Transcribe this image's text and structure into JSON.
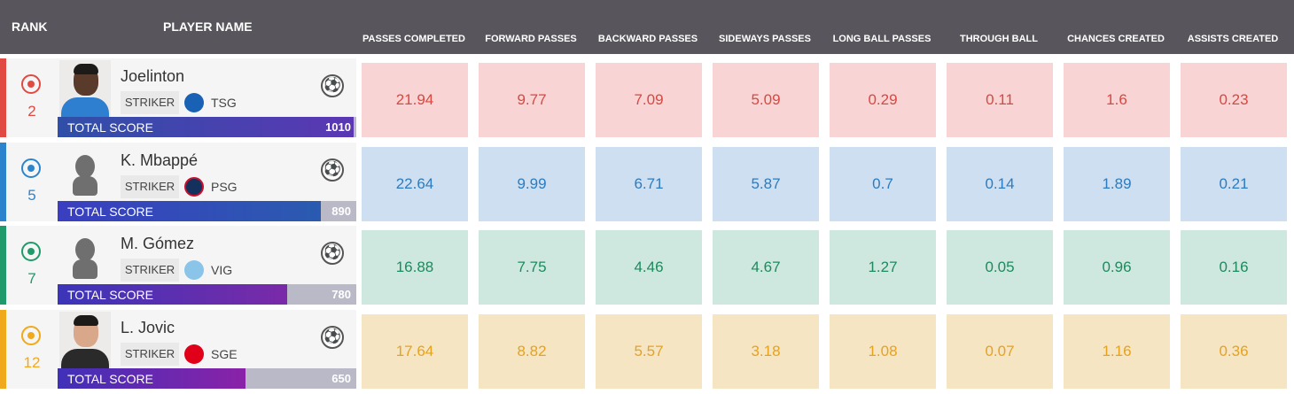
{
  "header": {
    "rank": "RANK",
    "player": "PLAYER NAME",
    "columns": [
      "PASSES COMPLETED",
      "FORWARD PASSES",
      "BACKWARD PASSES",
      "SIDEWAYS PASSES",
      "LONG BALL PASSES",
      "THROUGH BALL",
      "CHANCES CREATED",
      "ASSISTS CREATED"
    ]
  },
  "total_score_label": "TOTAL SCORE",
  "players": [
    {
      "rank": "2",
      "name": "Joelinton",
      "position": "STRIKER",
      "club": "TSG",
      "club_logo_icon": "hoffenheim-logo-icon",
      "photo": "player-photo",
      "score": "1010",
      "score_fraction": 0.99,
      "accent": "#e04a43",
      "stat_bg": "#f8d5d4",
      "stat_color": "#d94741",
      "score_gradient": [
        "#2f4fa8",
        "#5b37b4"
      ],
      "stats": [
        "21.94",
        "9.77",
        "7.09",
        "5.09",
        "0.29",
        "0.11",
        "1.6",
        "0.23"
      ]
    },
    {
      "rank": "5",
      "name": "K. Mbappé",
      "position": "STRIKER",
      "club": "PSG",
      "club_logo_icon": "psg-logo-icon",
      "photo": "player-silhouette",
      "score": "890",
      "score_fraction": 0.88,
      "accent": "#2c85cc",
      "stat_bg": "#cddff0",
      "stat_color": "#2d7bc0",
      "score_gradient": [
        "#3a3ec0",
        "#2a5bb0"
      ],
      "stats": [
        "22.64",
        "9.99",
        "6.71",
        "5.87",
        "0.7",
        "0.14",
        "1.89",
        "0.21"
      ]
    },
    {
      "rank": "7",
      "name": "M. Gómez",
      "position": "STRIKER",
      "club": "VIG",
      "club_logo_icon": "celta-vigo-logo-icon",
      "photo": "player-silhouette",
      "score": "780",
      "score_fraction": 0.77,
      "accent": "#1e9a6b",
      "stat_bg": "#cfe8df",
      "stat_color": "#1d8a5f",
      "score_gradient": [
        "#3b35b8",
        "#7a2aa8"
      ],
      "stats": [
        "16.88",
        "7.75",
        "4.46",
        "4.67",
        "1.27",
        "0.05",
        "0.96",
        "0.16"
      ]
    },
    {
      "rank": "12",
      "name": "L. Jovic",
      "position": "STRIKER",
      "club": "SGE",
      "club_logo_icon": "eintracht-frankfurt-logo-icon",
      "photo": "player-photo",
      "score": "650",
      "score_fraction": 0.63,
      "accent": "#f1a91c",
      "stat_bg": "#f6e5c3",
      "stat_color": "#e6a21c",
      "score_gradient": [
        "#4030b8",
        "#8a22a8"
      ],
      "stats": [
        "17.64",
        "8.82",
        "5.57",
        "3.18",
        "1.08",
        "0.07",
        "1.16",
        "0.36"
      ]
    }
  ]
}
